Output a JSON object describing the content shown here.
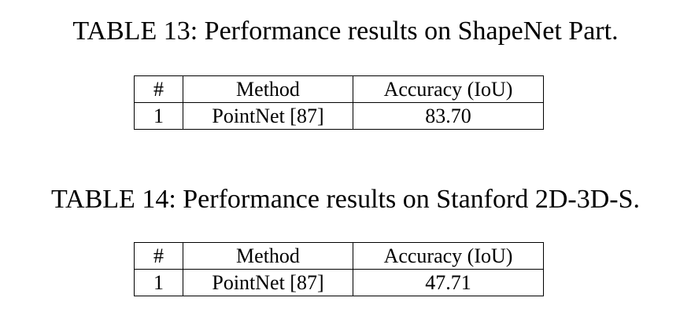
{
  "page": {
    "background_color": "#ffffff",
    "text_color": "#000000"
  },
  "tables": [
    {
      "caption": "TABLE 13: Performance results on ShapeNet Part.",
      "columns": [
        "#",
        "Method",
        "Accuracy (IoU)"
      ],
      "rows": [
        [
          "1",
          "PointNet [87]",
          "83.70"
        ]
      ]
    },
    {
      "caption": "TABLE 14: Performance results on Stanford 2D-3D-S.",
      "columns": [
        "#",
        "Method",
        "Accuracy (IoU)"
      ],
      "rows": [
        [
          "1",
          "PointNet [87]",
          "47.71"
        ]
      ]
    }
  ]
}
